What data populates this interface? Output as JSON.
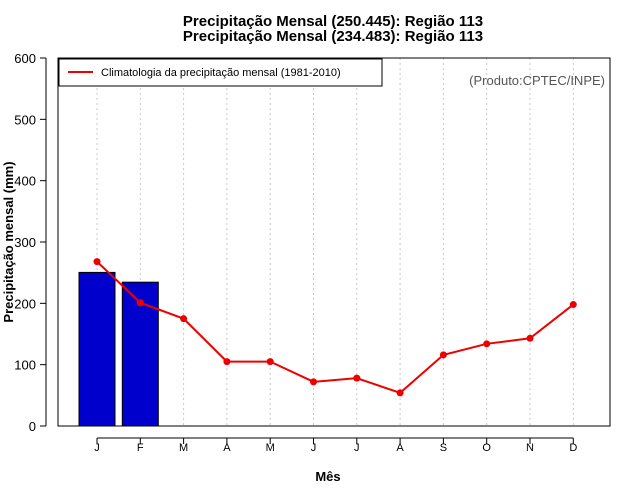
{
  "chart_data": {
    "type": "bar+line",
    "titles": [
      "Precipitação Mensal (250.445): Região 113",
      "Precipitação Mensal (234.483): Região 113"
    ],
    "categories": [
      "J",
      "F",
      "M",
      "A",
      "M",
      "J",
      "J",
      "A",
      "S",
      "O",
      "N",
      "D"
    ],
    "bars": {
      "name": "Precipitação mensal",
      "values": [
        250.445,
        234.483,
        null,
        null,
        null,
        null,
        null,
        null,
        null,
        null,
        null,
        null
      ],
      "color": "#0000cc"
    },
    "series": [
      {
        "name": "Climatologia da precipitação mensal (1981-2010)",
        "values": [
          268,
          201,
          175,
          105,
          105,
          72,
          78,
          54,
          116,
          134,
          143,
          198
        ],
        "color": "#ee0000"
      }
    ],
    "ylim": [
      0,
      600
    ],
    "yticks": [
      0,
      100,
      200,
      300,
      400,
      500,
      600
    ],
    "xlabel": "Mês",
    "ylabel": "Precipitação mensal (mm)",
    "credit": "(Produto:CPTEC/INPE)",
    "legend_position": "top-left",
    "grid": "vertical-dashed"
  }
}
